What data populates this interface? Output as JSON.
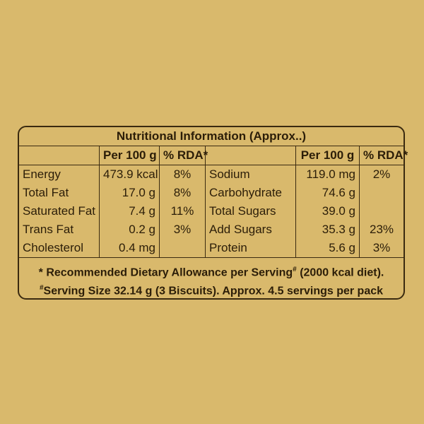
{
  "table": {
    "title": "Nutritional Information (Approx..)",
    "headers": [
      null,
      "Per 100 g",
      "% RDA*",
      null,
      "Per 100 g",
      "% RDA*"
    ],
    "rows": [
      [
        "Energy",
        "473.9 kcal",
        "8%",
        "Sodium",
        "119.0 mg",
        "2%"
      ],
      [
        "Total Fat",
        "17.0 g",
        "8%",
        "Carbohydrate",
        "74.6 g",
        null
      ],
      [
        "Saturated Fat",
        "7.4 g",
        "11%",
        "Total Sugars",
        "39.0 g",
        null
      ],
      [
        "Trans Fat",
        "0.2 g",
        "3%",
        "Add Sugars",
        "35.3 g",
        "23%"
      ],
      [
        "Cholesterol",
        "0.4 mg",
        null,
        "Protein",
        "5.6 g",
        "3%"
      ]
    ],
    "footnotes": [
      [
        "* Recommended Dietary Allowance per Serving",
        "#",
        "(2000 kcal diet)."
      ],
      [
        "#",
        "Serving Size 32.14 g (3 Biscuits). Approx. 4.5 servings per pack"
      ]
    ]
  }
}
